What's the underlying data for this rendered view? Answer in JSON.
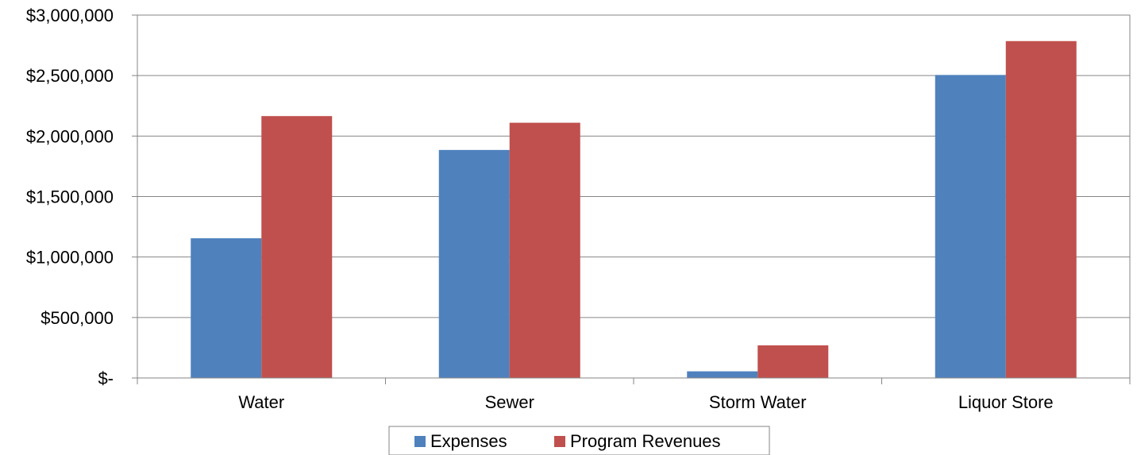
{
  "chart_data": {
    "type": "bar",
    "title": "",
    "xlabel": "",
    "ylabel": "",
    "categories": [
      "Water",
      "Sewer",
      "Storm Water",
      "Liquor Store"
    ],
    "series": [
      {
        "name": "Expenses",
        "color": "#4F81BD",
        "values": [
          1155000,
          1885000,
          55000,
          2505000
        ]
      },
      {
        "name": "Program Revenues",
        "color": "#C0504D",
        "values": [
          2165000,
          2110000,
          270000,
          2785000
        ]
      }
    ],
    "ylim": [
      0,
      3000000
    ],
    "y_ticks": [
      0,
      500000,
      1000000,
      1500000,
      2000000,
      2500000,
      3000000
    ],
    "y_tick_labels": [
      "$-",
      "$500,000",
      "$1,000,000",
      "$1,500,000",
      "$2,000,000",
      "$2,500,000",
      "$3,000,000"
    ],
    "grid": true,
    "legend_position": "bottom"
  }
}
